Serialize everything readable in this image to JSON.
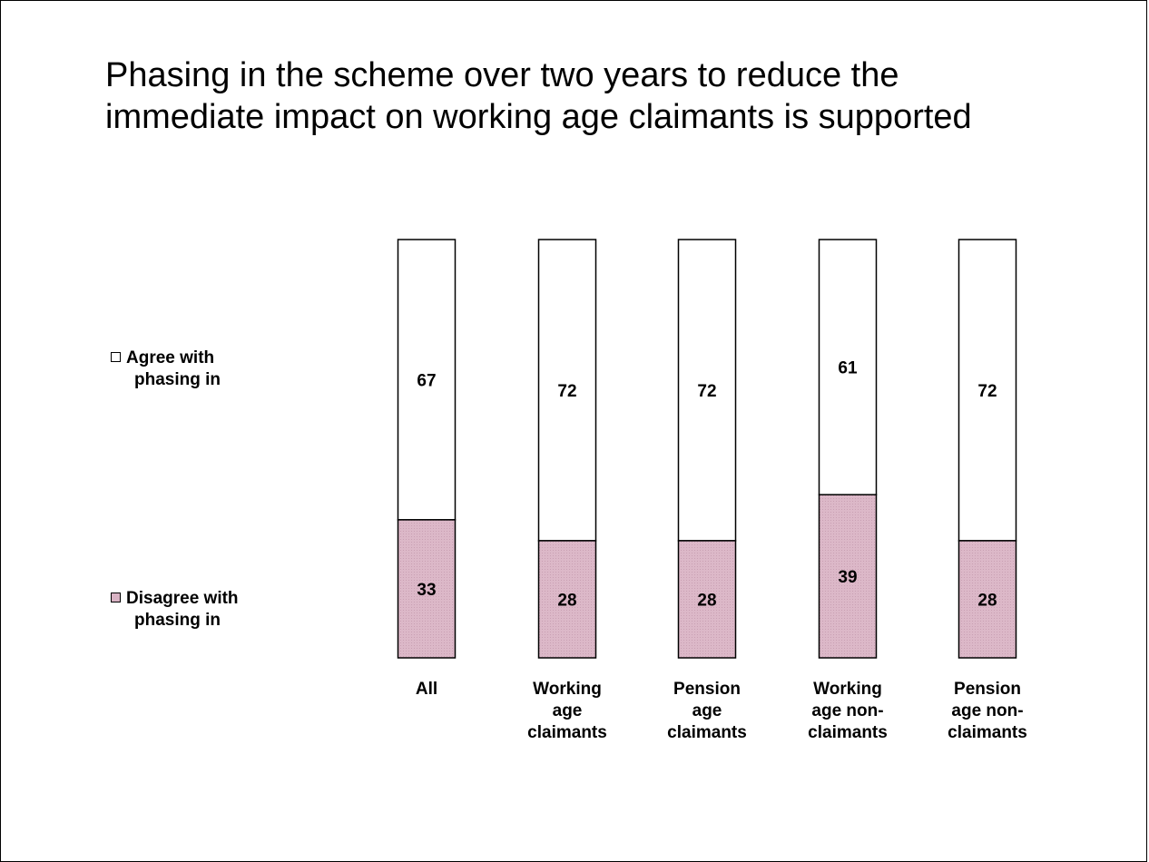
{
  "chart_data": {
    "type": "bar",
    "stacked": true,
    "orientation": "vertical",
    "title": "Phasing in the scheme over two years to reduce the immediate impact on working age claimants is supported",
    "categories": [
      [
        "All"
      ],
      [
        "Working",
        "age",
        "claimants"
      ],
      [
        "Pension",
        "age",
        "claimants"
      ],
      [
        "Working",
        "age non-",
        "claimants"
      ],
      [
        "Pension",
        "age non-",
        "claimants"
      ]
    ],
    "series": [
      {
        "name": "Disagree with phasing in",
        "values": [
          33,
          28,
          28,
          39,
          28
        ],
        "color": "#d9b3c4"
      },
      {
        "name": "Agree with phasing in",
        "values": [
          67,
          72,
          72,
          61,
          72
        ],
        "color": "#ffffff"
      }
    ],
    "ylim": [
      0,
      100
    ],
    "grid": false,
    "legend_position": "left"
  },
  "legend": {
    "agree": {
      "line1": "Agree with",
      "line2": "phasing in"
    },
    "disagree": {
      "line1": "Disagree with",
      "line2": "phasing in"
    }
  }
}
